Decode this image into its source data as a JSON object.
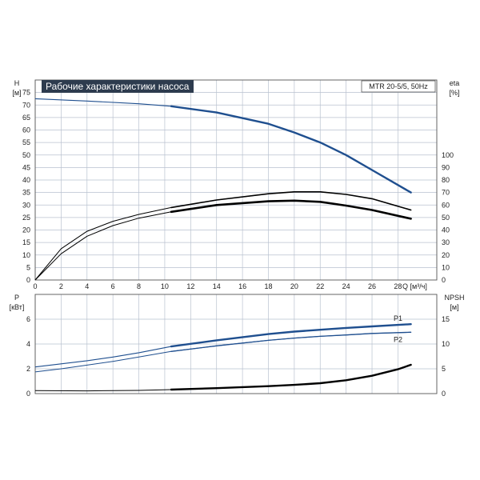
{
  "chart_data": [
    {
      "type": "line",
      "title": "Рабочие характеристики насоса",
      "model_label": "MTR 20-5/5, 50Hz",
      "ylabel": "H",
      "yunit": "[м]",
      "y2label": "eta",
      "y2unit": "[%]",
      "xlabel": "Q [м³/ч]",
      "xlim": [
        0,
        31
      ],
      "ylim": [
        0,
        80
      ],
      "y2lim": [
        0,
        160
      ],
      "xticks": [
        0,
        2,
        4,
        6,
        8,
        10,
        12,
        14,
        16,
        18,
        20,
        22,
        24,
        26,
        28
      ],
      "yticks": [
        0,
        5,
        10,
        15,
        20,
        25,
        30,
        35,
        40,
        45,
        50,
        55,
        60,
        65,
        70,
        75
      ],
      "y2ticks": [
        0,
        10,
        20,
        30,
        40,
        50,
        60,
        70,
        80,
        90,
        100
      ],
      "grid": true,
      "colors": {
        "head": "#1f4f8f",
        "eta": "#000000"
      },
      "series": [
        {
          "key": "head",
          "axis": "left",
          "x": [
            0,
            4,
            8,
            10.5,
            14,
            18,
            20,
            22,
            24,
            26,
            29
          ],
          "values": [
            72.5,
            71.6,
            70.5,
            69.5,
            67,
            62.5,
            59,
            55,
            50,
            44,
            35
          ]
        },
        {
          "key": "eta_system",
          "axis": "right",
          "x": [
            0,
            2,
            4,
            6,
            8,
            10.5,
            14,
            18,
            20,
            22,
            24,
            26,
            29
          ],
          "values": [
            0,
            21,
            35,
            43.5,
            49.5,
            54.5,
            60,
            63,
            63.5,
            62.5,
            59.5,
            56,
            49
          ]
        },
        {
          "key": "eta_pump",
          "axis": "right",
          "x": [
            0,
            2,
            4,
            6,
            8,
            10.5,
            14,
            18,
            20,
            22,
            24,
            26,
            29
          ],
          "values": [
            0,
            25,
            39,
            47,
            52.5,
            58,
            64,
            69,
            70.5,
            70.5,
            68.5,
            65,
            56
          ]
        }
      ]
    },
    {
      "type": "line",
      "ylabel": "P",
      "yunit": "[кВт]",
      "y2label": "NPSH",
      "y2unit": "[м]",
      "xlim": [
        0,
        31
      ],
      "ylim": [
        0,
        8
      ],
      "y2lim": [
        0,
        20
      ],
      "yticks": [
        0,
        2,
        4,
        6
      ],
      "y2ticks": [
        0,
        5,
        10,
        15
      ],
      "grid": true,
      "colors": {
        "power": "#1f4f8f",
        "npsh": "#000000"
      },
      "series": [
        {
          "name": "P1",
          "axis": "left",
          "x": [
            0,
            2,
            4,
            6,
            8,
            10.5,
            14,
            18,
            20,
            22,
            24,
            26,
            29
          ],
          "values": [
            2.15,
            2.4,
            2.65,
            2.95,
            3.3,
            3.8,
            4.3,
            4.8,
            5.0,
            5.15,
            5.3,
            5.42,
            5.6
          ]
        },
        {
          "name": "P2",
          "axis": "left",
          "x": [
            0,
            2,
            4,
            6,
            8,
            10.5,
            14,
            18,
            20,
            22,
            24,
            26,
            29
          ],
          "values": [
            1.75,
            2.0,
            2.3,
            2.6,
            2.95,
            3.4,
            3.85,
            4.3,
            4.48,
            4.62,
            4.73,
            4.85,
            4.95
          ]
        },
        {
          "key": "npsh",
          "axis": "right",
          "x": [
            0,
            4,
            8,
            10.5,
            14,
            18,
            20,
            22,
            24,
            26,
            28,
            29
          ],
          "values": [
            0.6,
            0.55,
            0.65,
            0.8,
            1.1,
            1.5,
            1.75,
            2.1,
            2.7,
            3.6,
            4.9,
            5.8
          ]
        }
      ]
    }
  ]
}
